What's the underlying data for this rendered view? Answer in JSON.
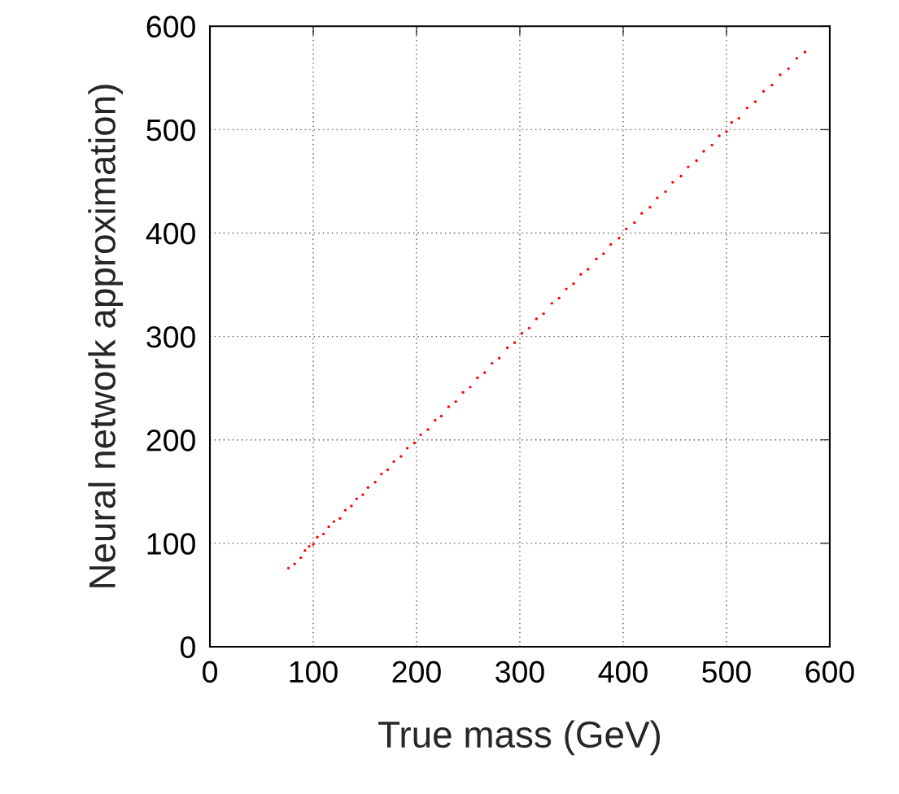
{
  "chart_data": {
    "type": "scatter",
    "xlabel": "True mass (GeV)",
    "ylabel": "Neural network approximation)",
    "xlim": [
      0,
      600
    ],
    "ylim": [
      0,
      600
    ],
    "xticks": [
      0,
      100,
      200,
      300,
      400,
      500,
      600
    ],
    "yticks": [
      0,
      100,
      200,
      300,
      400,
      500,
      600
    ],
    "grid": true,
    "marker": "circle",
    "series": [
      {
        "color": "#ff0000",
        "x": [
          76,
          82,
          88,
          92,
          96,
          100,
          104,
          110,
          115,
          120,
          126,
          131,
          137,
          142,
          148,
          153,
          160,
          166,
          172,
          178,
          185,
          191,
          198,
          204,
          211,
          218,
          224,
          231,
          238,
          245,
          252,
          259,
          266,
          273,
          280,
          288,
          295,
          302,
          309,
          316,
          323,
          331,
          338,
          345,
          352,
          359,
          366,
          374,
          381,
          388,
          396,
          403,
          411,
          418,
          426,
          433,
          441,
          448,
          456,
          463,
          471,
          478,
          486,
          493,
          500,
          505,
          512,
          520,
          528,
          536,
          544,
          552,
          560,
          568,
          576
        ],
        "values": [
          76,
          80,
          86,
          93,
          97,
          99,
          106,
          109,
          116,
          121,
          124,
          132,
          136,
          143,
          147,
          154,
          159,
          167,
          171,
          179,
          184,
          192,
          197,
          205,
          210,
          219,
          223,
          232,
          237,
          246,
          251,
          260,
          265,
          274,
          279,
          289,
          294,
          303,
          308,
          317,
          322,
          332,
          337,
          346,
          351,
          360,
          365,
          375,
          380,
          389,
          395,
          404,
          410,
          419,
          425,
          434,
          440,
          449,
          455,
          464,
          470,
          479,
          485,
          494,
          498,
          507,
          511,
          521,
          527,
          537,
          543,
          553,
          559,
          569,
          575
        ]
      }
    ]
  }
}
